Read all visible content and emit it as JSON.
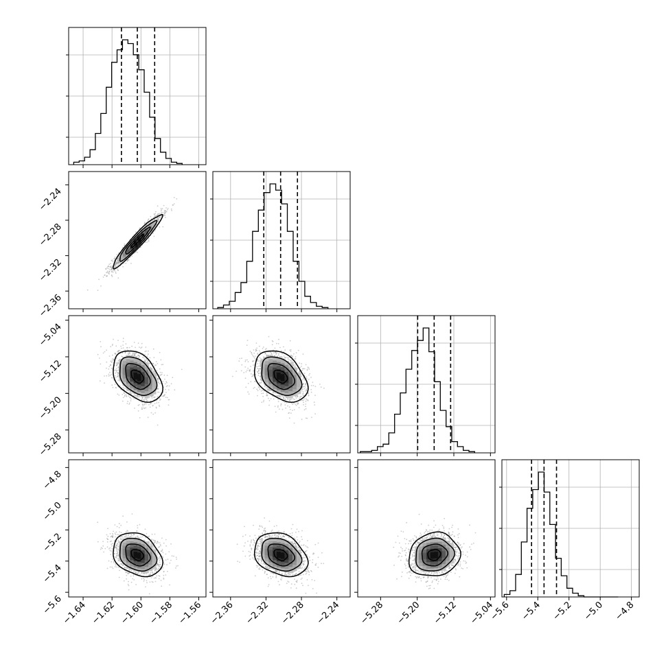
{
  "chart_data": {
    "type": "corner",
    "grid": true,
    "parameters": [
      {
        "name": "",
        "range": [
          -1.65,
          -1.555
        ],
        "ticks": [
          -1.64,
          -1.62,
          -1.6,
          -1.58,
          -1.56
        ],
        "tick_labels": [
          "−1.64",
          "−1.62",
          "−1.60",
          "−1.58",
          "−1.56"
        ],
        "quantiles": [
          -1.6135,
          -1.6025,
          -1.5905
        ]
      },
      {
        "name": "",
        "range": [
          -2.38,
          -2.225
        ],
        "ticks": [
          -2.36,
          -2.32,
          -2.28,
          -2.24
        ],
        "tick_labels": [
          "−2.36",
          "−2.32",
          "−2.28",
          "−2.24"
        ],
        "quantiles": [
          -2.3225,
          -2.3035,
          -2.2845
        ]
      },
      {
        "name": "",
        "range": [
          -5.33,
          -5.03
        ],
        "ticks": [
          -5.28,
          -5.2,
          -5.12,
          -5.04
        ],
        "tick_labels": [
          "−5.28",
          "−5.20",
          "−5.12",
          "−5.04"
        ],
        "quantiles": [
          -5.199,
          -5.163,
          -5.127
        ]
      },
      {
        "name": "",
        "range": [
          -5.63,
          -4.75
        ],
        "ticks": [
          -5.6,
          -5.4,
          -5.2,
          -5.0,
          -4.8
        ],
        "tick_labels": [
          "−5.6",
          "−5.4",
          "−5.2",
          "−5.0",
          "−4.8"
        ],
        "quantiles": [
          -5.44,
          -5.36,
          -5.28
        ]
      }
    ],
    "histograms": [
      {
        "param": 0,
        "bins_start": -1.6465,
        "bin_width": 0.00375,
        "counts": [
          0.02,
          0.03,
          0.06,
          0.12,
          0.25,
          0.41,
          0.62,
          0.82,
          0.92,
          1.0,
          0.97,
          0.88,
          0.76,
          0.58,
          0.38,
          0.21,
          0.1,
          0.05,
          0.02,
          0.01
        ]
      },
      {
        "param": 1,
        "bins_start": -2.3745,
        "bin_width": 0.00655,
        "counts": [
          0.01,
          0.03,
          0.06,
          0.13,
          0.21,
          0.38,
          0.62,
          0.79,
          0.93,
          1.0,
          0.95,
          0.84,
          0.62,
          0.38,
          0.22,
          0.1,
          0.05,
          0.02,
          0.01
        ]
      },
      {
        "param": 2,
        "bins_start": -5.3245,
        "bin_width": 0.0125,
        "counts": [
          0.01,
          0.01,
          0.02,
          0.05,
          0.07,
          0.16,
          0.31,
          0.48,
          0.67,
          0.82,
          0.9,
          1.0,
          0.81,
          0.57,
          0.34,
          0.21,
          0.09,
          0.05,
          0.02,
          0.01
        ]
      },
      {
        "param": 3,
        "bins_start": -5.615,
        "bin_width": 0.0365,
        "counts": [
          0.02,
          0.05,
          0.18,
          0.44,
          0.71,
          0.86,
          1.0,
          0.84,
          0.58,
          0.31,
          0.17,
          0.07,
          0.03,
          0.01,
          0.0,
          0.0,
          0.0,
          0.0,
          0.0,
          0.0
        ]
      }
    ],
    "joint": [
      {
        "x": 0,
        "y": 1,
        "mean": [
          -1.6025,
          -2.3035
        ],
        "sigma": [
          0.0085,
          0.015
        ],
        "rho": 0.95
      },
      {
        "x": 0,
        "y": 2,
        "mean": [
          -1.6025,
          -5.163
        ],
        "sigma": [
          0.0085,
          0.028
        ],
        "rho": -0.4
      },
      {
        "x": 1,
        "y": 2,
        "mean": [
          -2.3035,
          -5.163
        ],
        "sigma": [
          0.015,
          0.028
        ],
        "rho": -0.38
      },
      {
        "x": 0,
        "y": 3,
        "mean": [
          -1.6025,
          -5.36
        ],
        "sigma": [
          0.0085,
          0.07
        ],
        "rho": -0.28
      },
      {
        "x": 1,
        "y": 3,
        "mean": [
          -2.3035,
          -5.36
        ],
        "sigma": [
          0.015,
          0.07
        ],
        "rho": -0.28
      },
      {
        "x": 2,
        "y": 3,
        "mean": [
          -5.163,
          -5.36
        ],
        "sigma": [
          0.028,
          0.07
        ],
        "rho": 0.1
      }
    ],
    "contour_levels_sigma": [
      0.5,
      1.0,
      1.5,
      2.0
    ]
  }
}
